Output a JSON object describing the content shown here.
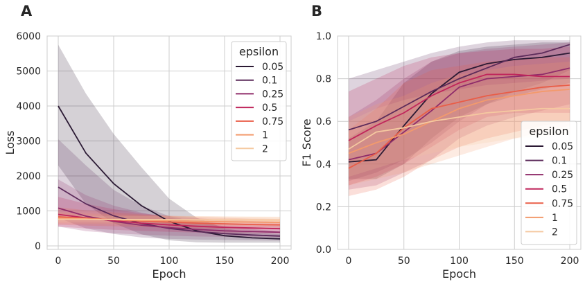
{
  "palette": {
    "0.05": "#2b1a34",
    "0.1": "#5b2a5a",
    "0.25": "#8f2c6a",
    "0.5": "#c0255b",
    "0.75": "#e95d47",
    "1": "#f39a6c",
    "2": "#f5c9a0"
  },
  "chart_data": [
    {
      "panel": "A",
      "type": "line",
      "xlabel": "Epoch",
      "ylabel": "Loss",
      "xlim": [
        -10,
        210
      ],
      "ylim": [
        -100,
        6000
      ],
      "xticks": [
        0,
        50,
        100,
        150,
        200
      ],
      "yticks": [
        0,
        1000,
        2000,
        3000,
        4000,
        5000,
        6000
      ],
      "grid": true,
      "legend": {
        "title": "epsilon",
        "placement": "top-right"
      },
      "x": [
        0,
        25,
        50,
        75,
        100,
        125,
        150,
        175,
        200
      ],
      "series": [
        {
          "name": "0.05",
          "values": [
            4000,
            2650,
            1780,
            1150,
            700,
            430,
            290,
            230,
            200
          ],
          "lower": [
            2300,
            1200,
            650,
            330,
            160,
            100,
            90,
            90,
            90
          ],
          "upper": [
            5750,
            4350,
            3200,
            2250,
            1350,
            800,
            500,
            380,
            330
          ]
        },
        {
          "name": "0.1",
          "values": [
            1680,
            1200,
            860,
            640,
            500,
            410,
            350,
            310,
            280
          ],
          "lower": [
            800,
            500,
            340,
            240,
            200,
            180,
            170,
            160,
            150
          ],
          "upper": [
            3050,
            2300,
            1600,
            1150,
            850,
            680,
            560,
            480,
            420
          ]
        },
        {
          "name": "0.25",
          "values": [
            1080,
            850,
            700,
            590,
            520,
            470,
            430,
            410,
            390
          ],
          "lower": [
            550,
            420,
            360,
            320,
            290,
            270,
            260,
            250,
            240
          ],
          "upper": [
            1900,
            1450,
            1150,
            950,
            800,
            700,
            650,
            610,
            580
          ]
        },
        {
          "name": "0.5",
          "values": [
            900,
            800,
            720,
            650,
            600,
            560,
            530,
            510,
            490
          ],
          "lower": [
            550,
            500,
            460,
            430,
            400,
            380,
            370,
            360,
            350
          ],
          "upper": [
            1400,
            1200,
            1050,
            930,
            850,
            790,
            740,
            710,
            690
          ]
        },
        {
          "name": "0.75",
          "values": [
            830,
            790,
            750,
            710,
            680,
            650,
            630,
            610,
            600
          ],
          "lower": [
            600,
            580,
            560,
            540,
            520,
            500,
            490,
            480,
            470
          ],
          "upper": [
            1100,
            1020,
            960,
            900,
            860,
            830,
            800,
            780,
            770
          ]
        },
        {
          "name": "1",
          "values": [
            790,
            770,
            750,
            730,
            720,
            700,
            690,
            680,
            670
          ],
          "lower": [
            640,
            630,
            620,
            610,
            600,
            590,
            580,
            570,
            560
          ],
          "upper": [
            960,
            930,
            900,
            880,
            860,
            850,
            840,
            830,
            820
          ]
        },
        {
          "name": "2",
          "values": [
            760,
            760,
            755,
            750,
            750,
            745,
            740,
            740,
            735
          ],
          "lower": [
            670,
            670,
            665,
            660,
            660,
            655,
            650,
            650,
            645
          ],
          "upper": [
            860,
            860,
            855,
            850,
            850,
            845,
            840,
            840,
            835
          ]
        }
      ]
    },
    {
      "panel": "B",
      "type": "line",
      "xlabel": "Epoch",
      "ylabel": "F1 Score",
      "xlim": [
        -10,
        210
      ],
      "ylim": [
        0.0,
        1.0
      ],
      "xticks": [
        0,
        50,
        100,
        150,
        200
      ],
      "yticks": [
        "0.0",
        "0.2",
        "0.4",
        "0.6",
        "0.8",
        "1.0"
      ],
      "grid": true,
      "legend": {
        "title": "epsilon",
        "placement": "bottom-right"
      },
      "x": [
        0,
        25,
        50,
        75,
        100,
        125,
        150,
        175,
        200
      ],
      "series": [
        {
          "name": "0.05",
          "values": [
            0.41,
            0.42,
            0.58,
            0.73,
            0.83,
            0.87,
            0.89,
            0.9,
            0.92
          ],
          "lower": [
            0.33,
            0.33,
            0.4,
            0.52,
            0.62,
            0.68,
            0.72,
            0.75,
            0.78
          ],
          "upper": [
            0.52,
            0.6,
            0.78,
            0.88,
            0.93,
            0.95,
            0.96,
            0.97,
            0.97
          ]
        },
        {
          "name": "0.1",
          "values": [
            0.56,
            0.6,
            0.67,
            0.74,
            0.8,
            0.85,
            0.9,
            0.92,
            0.96
          ],
          "lower": [
            0.32,
            0.36,
            0.42,
            0.5,
            0.6,
            0.68,
            0.74,
            0.78,
            0.84
          ],
          "upper": [
            0.8,
            0.84,
            0.88,
            0.92,
            0.95,
            0.97,
            0.98,
            0.98,
            0.98
          ]
        },
        {
          "name": "0.25",
          "values": [
            0.42,
            0.45,
            0.55,
            0.65,
            0.76,
            0.8,
            0.81,
            0.82,
            0.85
          ],
          "lower": [
            0.28,
            0.3,
            0.36,
            0.42,
            0.52,
            0.58,
            0.62,
            0.65,
            0.68
          ],
          "upper": [
            0.62,
            0.7,
            0.8,
            0.88,
            0.92,
            0.94,
            0.95,
            0.96,
            0.97
          ]
        },
        {
          "name": "0.5",
          "values": [
            0.51,
            0.58,
            0.64,
            0.72,
            0.78,
            0.82,
            0.82,
            0.81,
            0.81
          ],
          "lower": [
            0.3,
            0.34,
            0.4,
            0.48,
            0.56,
            0.62,
            0.64,
            0.64,
            0.64
          ],
          "upper": [
            0.74,
            0.8,
            0.86,
            0.9,
            0.92,
            0.93,
            0.94,
            0.94,
            0.95
          ]
        },
        {
          "name": "0.75",
          "values": [
            0.38,
            0.45,
            0.57,
            0.66,
            0.69,
            0.72,
            0.74,
            0.76,
            0.77
          ],
          "lower": [
            0.25,
            0.28,
            0.34,
            0.42,
            0.48,
            0.52,
            0.55,
            0.58,
            0.6
          ],
          "upper": [
            0.56,
            0.66,
            0.78,
            0.84,
            0.86,
            0.88,
            0.89,
            0.9,
            0.9
          ]
        },
        {
          "name": "1",
          "values": [
            0.45,
            0.5,
            0.54,
            0.6,
            0.66,
            0.7,
            0.72,
            0.74,
            0.75
          ],
          "lower": [
            0.3,
            0.33,
            0.36,
            0.4,
            0.44,
            0.48,
            0.52,
            0.55,
            0.58
          ],
          "upper": [
            0.62,
            0.68,
            0.72,
            0.78,
            0.82,
            0.84,
            0.86,
            0.87,
            0.88
          ]
        },
        {
          "name": "2",
          "values": [
            0.47,
            0.55,
            0.57,
            0.6,
            0.62,
            0.64,
            0.65,
            0.66,
            0.66
          ],
          "lower": [
            0.34,
            0.38,
            0.42,
            0.45,
            0.48,
            0.5,
            0.52,
            0.53,
            0.54
          ],
          "upper": [
            0.6,
            0.66,
            0.7,
            0.73,
            0.75,
            0.77,
            0.78,
            0.79,
            0.8
          ]
        }
      ]
    }
  ]
}
